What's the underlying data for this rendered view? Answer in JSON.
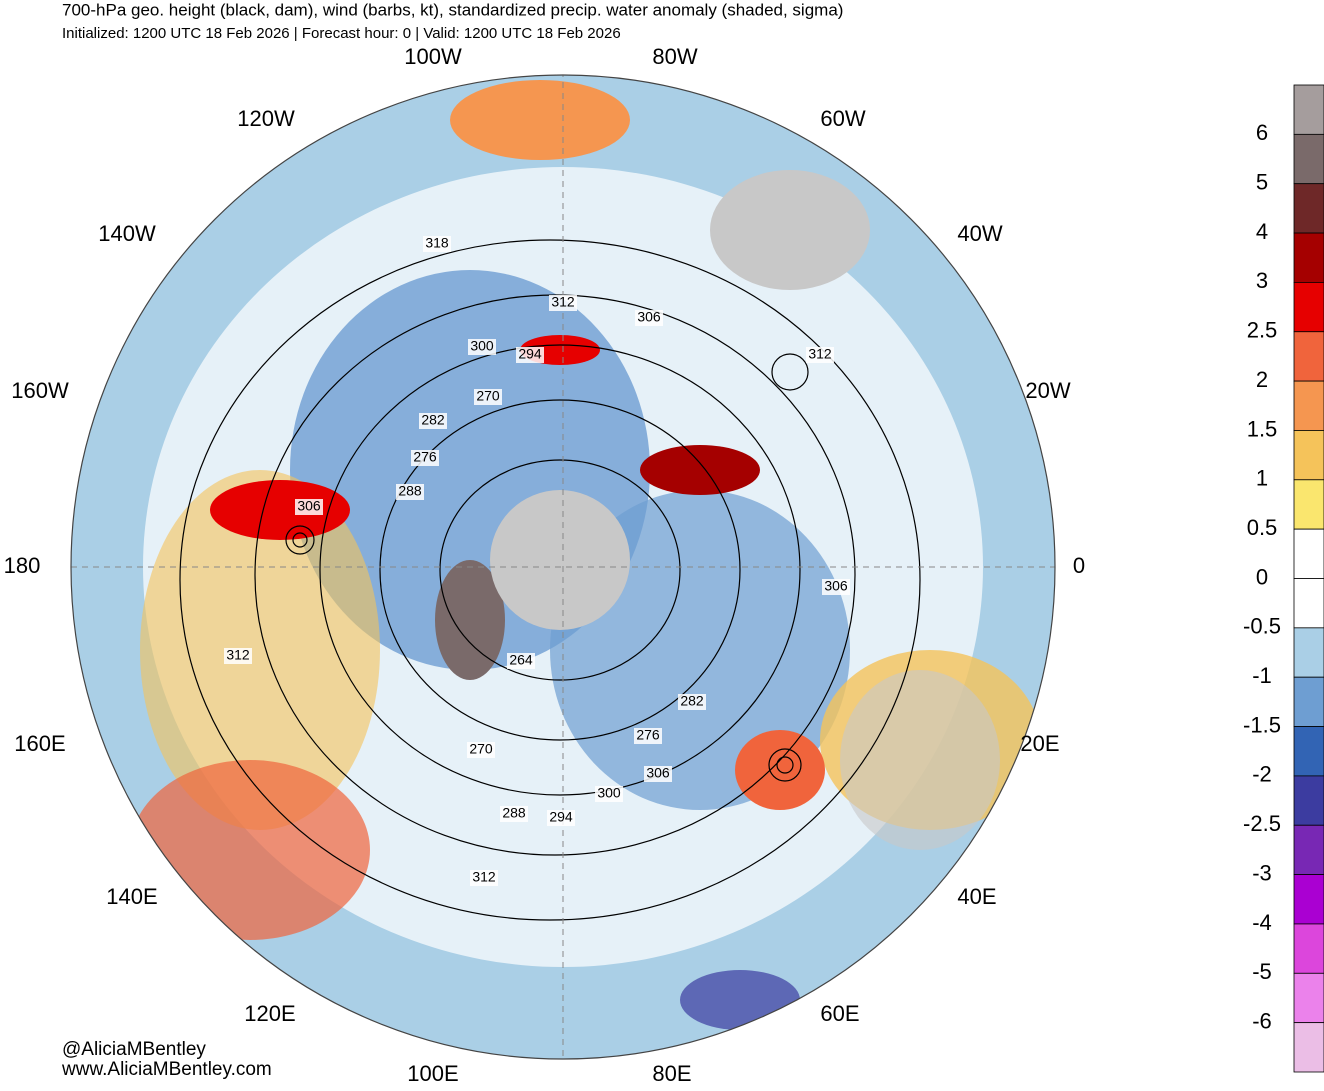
{
  "header": {
    "title": "700-hPa geo. height (black, dam), wind (barbs, kt), standardized precip. water anomaly (shaded, sigma)",
    "subtitle": "Initialized: 1200 UTC 18 Feb 2026 | Forecast hour: 0 | Valid: 1200 UTC 18 Feb 2026"
  },
  "map": {
    "longitude_labels": [
      "100W",
      "80W",
      "60W",
      "40W",
      "20W",
      "0",
      "20E",
      "40E",
      "60E",
      "80E",
      "100E",
      "120E",
      "140E",
      "160E",
      "180",
      "160W",
      "140W",
      "120W"
    ],
    "contour_labels": [
      "318",
      "312",
      "306",
      "312",
      "300",
      "294",
      "270",
      "282",
      "276",
      "288",
      "306",
      "306",
      "312",
      "264",
      "282",
      "276",
      "306",
      "270",
      "300",
      "288",
      "294",
      "312"
    ]
  },
  "colorbar": {
    "labels": [
      "6",
      "5",
      "4",
      "3",
      "2.5",
      "2",
      "1.5",
      "1",
      "0.5",
      "0",
      "-0.5",
      "-1",
      "-1.5",
      "-2",
      "-2.5",
      "-3",
      "-4",
      "-5",
      "-6"
    ],
    "colors": [
      "#a59d9d",
      "#7a6a6a",
      "#6e2828",
      "#a50000",
      "#e60000",
      "#f0643c",
      "#f59650",
      "#f5c35a",
      "#fae66e",
      "#ffffff",
      "#ffffff",
      "#aacfe6",
      "#6e9ed2",
      "#3264b4",
      "#3c3ca0",
      "#7828b4",
      "#aa00d2",
      "#dc46dc",
      "#eb82eb",
      "#ebbee6"
    ]
  },
  "credits": [
    "@AliciaMBentley",
    "www.AliciaMBentley.com"
  ]
}
